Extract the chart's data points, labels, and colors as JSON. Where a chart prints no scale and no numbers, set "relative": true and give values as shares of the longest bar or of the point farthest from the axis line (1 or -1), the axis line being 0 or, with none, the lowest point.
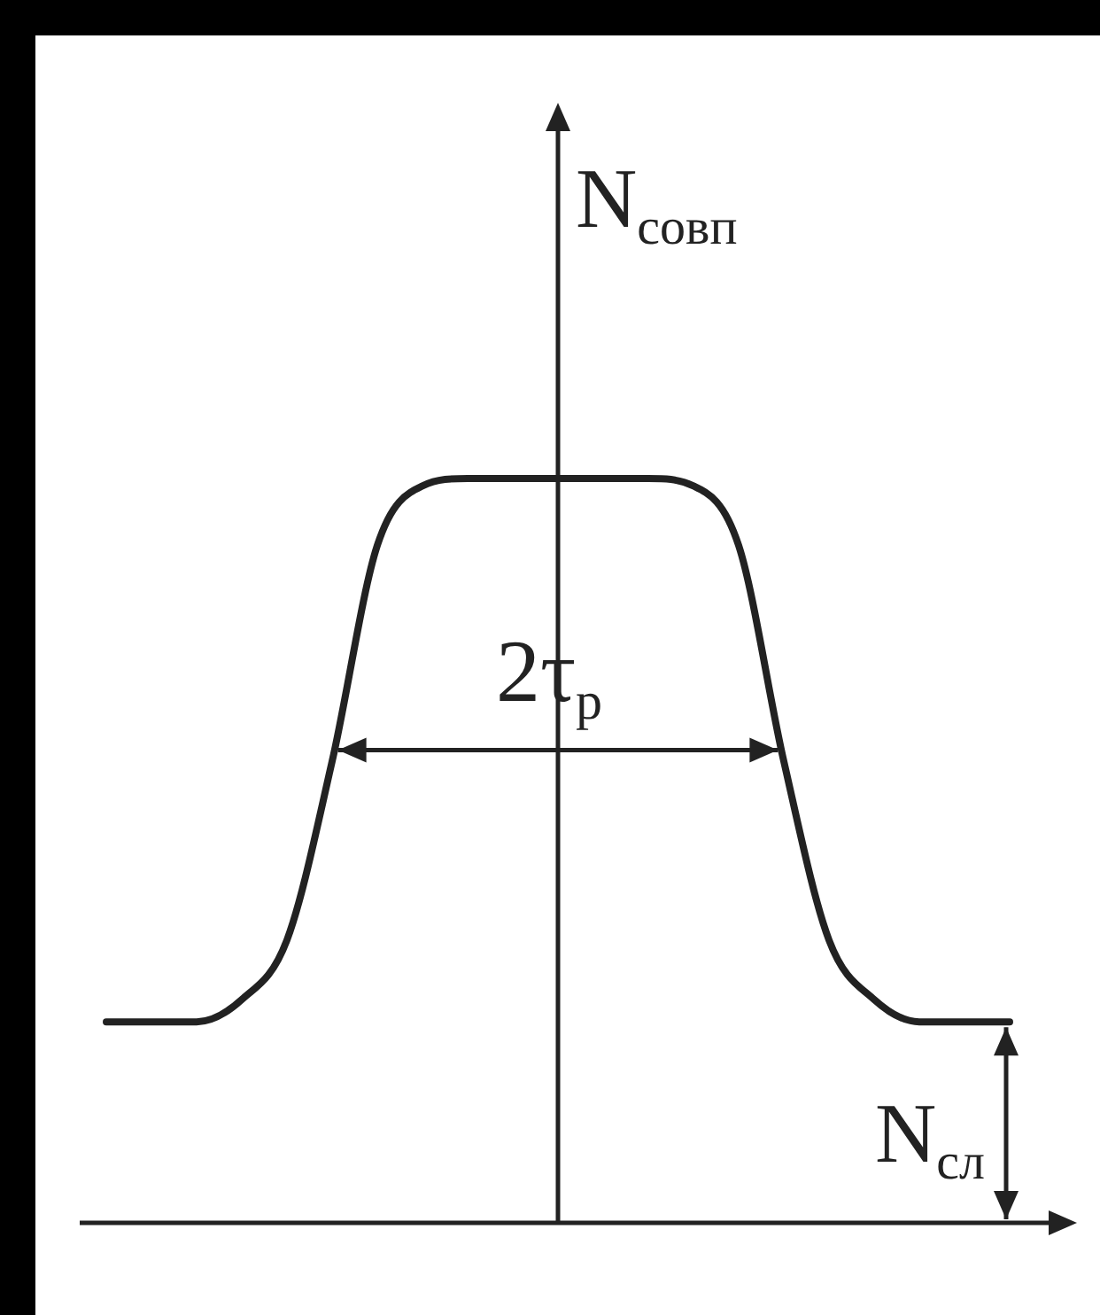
{
  "chart_data": {
    "type": "line",
    "relative": true,
    "ylabel": "N$_{совп}$",
    "annotations": [
      "2τ$_{p}$",
      "N$_{сл}$"
    ],
    "categories": [
      null,
      null,
      null,
      null,
      null,
      null,
      null,
      null,
      null,
      null,
      null,
      null,
      null,
      null,
      null,
      null,
      null,
      null,
      null,
      null,
      null
    ],
    "values": [
      0.27,
      0.27,
      0.27,
      0.3,
      0.38,
      0.62,
      0.91,
      0.99,
      1,
      1,
      1,
      1,
      1,
      0.99,
      0.91,
      0.62,
      0.38,
      0.3,
      0.27,
      0.27,
      0.27
    ],
    "color": "#222222",
    "marker": "none",
    "line_style": "solid",
    "legend": false
  }
}
